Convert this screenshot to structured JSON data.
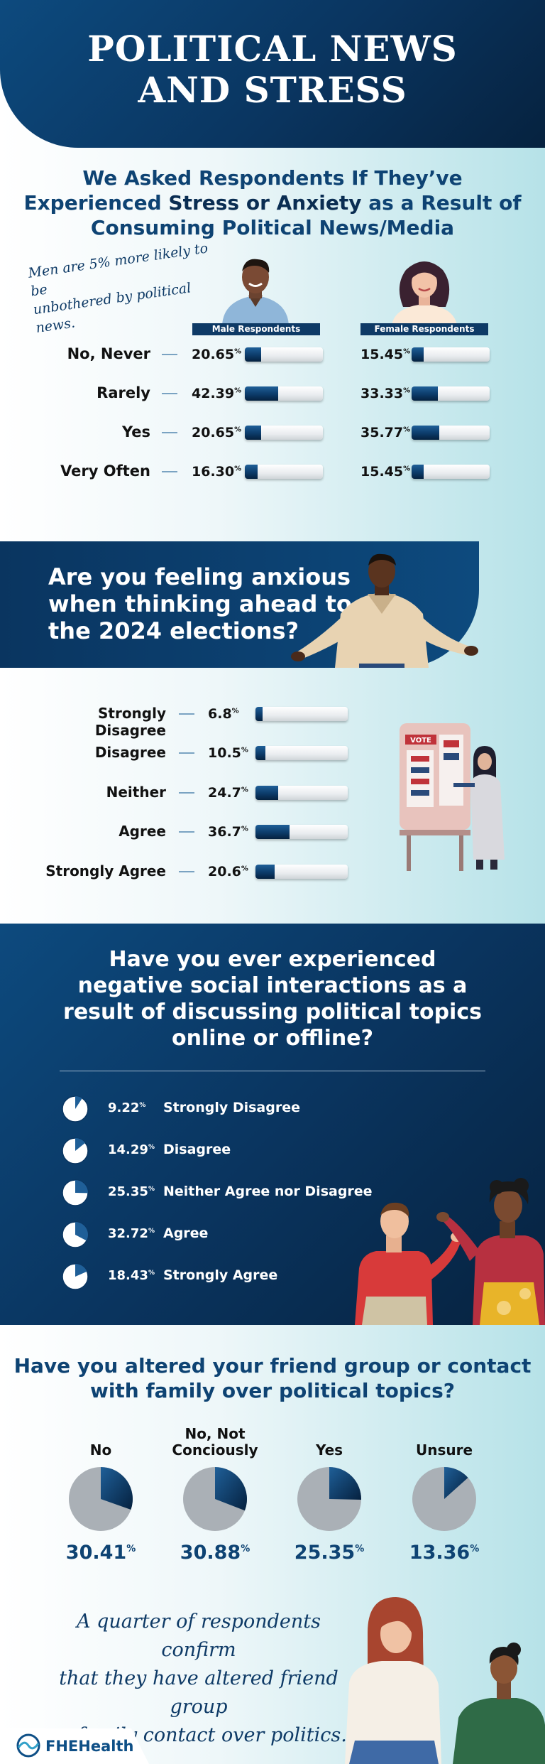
{
  "header": {
    "title_line1": "POLITICAL NEWS",
    "title_line2": "AND STRESS"
  },
  "section1": {
    "question_line1": "We Asked Respondents If They’ve",
    "question_line2_pre": "Experienced ",
    "question_line2_bold": "Stress or Anxiety",
    "question_line2_post": " as a Result of",
    "question_line3": "Consuming Political News/Media",
    "note_line1": "Men are 5% more likely to be",
    "note_line2": "unbothered by political news.",
    "male_tag": "Male Respondents",
    "female_tag": "Female Respondents"
  },
  "section2": {
    "question_line1": "Are you feeling anxious",
    "question_line2": "when thinking ahead to",
    "question_line3": "the 2024 elections?",
    "vote_sign": "VOTE"
  },
  "section3": {
    "question_line1": "Have you ever experienced",
    "question_line2": "negative social interactions as a",
    "question_line3": "result of discussing political topics",
    "question_line4": "online or offline?"
  },
  "section4": {
    "question_line1": "Have you altered your friend group or contact",
    "question_line2": "with family over political topics?"
  },
  "quote": {
    "line1": "A quarter of respondents confirm",
    "line2": "that they have altered friend group",
    "line3": "or family contact over politics."
  },
  "footer": {
    "logo": "FHEHealth"
  },
  "colors": {
    "navy": "#0a3560",
    "accent_blue": "#0e4373",
    "bar_dark": "#0c3b6a",
    "pie_grey": "#aab0b6"
  },
  "chart_data": [
    {
      "type": "bar",
      "categories": [
        "No, Never",
        "Rarely",
        "Yes",
        "Very Often"
      ],
      "series": [
        {
          "name": "Male Respondents",
          "values": [
            20.65,
            42.39,
            20.65,
            16.3
          ],
          "labels": [
            "20.65",
            "42.39",
            "20.65",
            "16.30"
          ]
        },
        {
          "name": "Female Respondents",
          "values": [
            15.45,
            33.33,
            35.77,
            15.45
          ],
          "labels": [
            "15.45",
            "33.33",
            "35.77",
            "15.45"
          ]
        }
      ],
      "unit": "%",
      "ylim": [
        0,
        100
      ]
    },
    {
      "type": "bar",
      "categories": [
        "Strongly Disagree",
        "Disagree",
        "Neither",
        "Agree",
        "Strongly Agree"
      ],
      "values": [
        6.8,
        10.5,
        24.7,
        36.7,
        20.6
      ],
      "labels": [
        "6.8",
        "10.5",
        "24.7",
        "36.7",
        "20.6"
      ],
      "unit": "%",
      "ylim": [
        0,
        100
      ]
    },
    {
      "type": "pie",
      "categories": [
        "Strongly Disagree",
        "Disagree",
        "Neither Agree nor Disagree",
        "Agree",
        "Strongly Agree"
      ],
      "values": [
        9.22,
        14.29,
        25.35,
        32.72,
        18.43
      ],
      "labels": [
        "9.22",
        "14.29",
        "25.35",
        "32.72",
        "18.43"
      ],
      "unit": "%"
    },
    {
      "type": "pie",
      "categories": [
        "No",
        "No, Not\nConciously",
        "Yes",
        "Unsure"
      ],
      "values": [
        30.41,
        30.88,
        25.35,
        13.36
      ],
      "labels": [
        "30.41",
        "30.88",
        "25.35",
        "13.36"
      ],
      "unit": "%"
    }
  ]
}
